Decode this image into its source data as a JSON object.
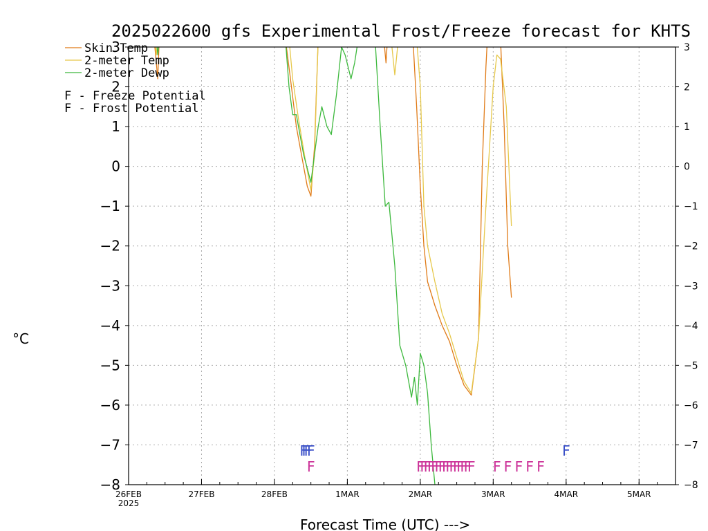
{
  "chart_data": {
    "type": "line",
    "title": "2025022600 gfs Experimental Frost/Freeze forecast for KHTS",
    "xlabel": "Forecast Time (UTC) --->",
    "ylabel": "°C",
    "ylim": [
      -8,
      3
    ],
    "yticks": [
      -8,
      -7,
      -6,
      -5,
      -4,
      -3,
      -2,
      -1,
      0,
      1,
      2,
      3
    ],
    "x_unit": "days since 26FEB2025 00UTC",
    "xlim": [
      0,
      7.5
    ],
    "x_ticks": [
      {
        "x": 0,
        "label": "26FEB",
        "sub": "2025"
      },
      {
        "x": 1,
        "label": "27FEB",
        "sub": ""
      },
      {
        "x": 2,
        "label": "28FEB",
        "sub": ""
      },
      {
        "x": 3,
        "label": "1MAR",
        "sub": ""
      },
      {
        "x": 4,
        "label": "2MAR",
        "sub": ""
      },
      {
        "x": 5,
        "label": "3MAR",
        "sub": ""
      },
      {
        "x": 6,
        "label": "4MAR",
        "sub": ""
      },
      {
        "x": 7,
        "label": "5MAR",
        "sub": ""
      }
    ],
    "grid": true,
    "legend_position": "top-left",
    "series": [
      {
        "name": "Skin Temp",
        "color": "#e07b18",
        "points": [
          [
            0.35,
            3.2
          ],
          [
            0.38,
            2.6
          ],
          [
            0.4,
            2.2
          ],
          [
            0.42,
            3.2
          ],
          [
            2.15,
            3.2
          ],
          [
            2.22,
            2.2
          ],
          [
            2.3,
            1.0
          ],
          [
            2.38,
            0.2
          ],
          [
            2.45,
            -0.5
          ],
          [
            2.5,
            -0.75
          ],
          [
            2.55,
            0.5
          ],
          [
            2.6,
            3.2
          ],
          [
            3.5,
            3.2
          ],
          [
            3.53,
            2.6
          ],
          [
            3.55,
            3.2
          ],
          [
            3.9,
            3.2
          ],
          [
            3.95,
            1.5
          ],
          [
            4.0,
            -0.5
          ],
          [
            4.05,
            -2.0
          ],
          [
            4.1,
            -2.9
          ],
          [
            4.2,
            -3.5
          ],
          [
            4.3,
            -4.0
          ],
          [
            4.4,
            -4.4
          ],
          [
            4.5,
            -5.0
          ],
          [
            4.6,
            -5.5
          ],
          [
            4.7,
            -5.75
          ],
          [
            4.8,
            -4.3
          ],
          [
            4.85,
            0.0
          ],
          [
            4.9,
            2.5
          ],
          [
            4.92,
            3.2
          ],
          [
            5.1,
            3.2
          ],
          [
            5.15,
            1.0
          ],
          [
            5.2,
            -2.0
          ],
          [
            5.25,
            -3.3
          ]
        ]
      },
      {
        "name": "2-meter Temp",
        "color": "#e6c84a",
        "points": [
          [
            0.36,
            3.2
          ],
          [
            0.38,
            2.8
          ],
          [
            0.4,
            3.2
          ],
          [
            2.2,
            3.2
          ],
          [
            2.25,
            2.2
          ],
          [
            2.33,
            1.2
          ],
          [
            2.42,
            0.2
          ],
          [
            2.5,
            -0.6
          ],
          [
            2.55,
            0.3
          ],
          [
            2.6,
            3.2
          ],
          [
            3.6,
            3.2
          ],
          [
            3.65,
            2.3
          ],
          [
            3.7,
            3.2
          ],
          [
            3.95,
            3.2
          ],
          [
            4.0,
            2.0
          ],
          [
            4.05,
            -1.0
          ],
          [
            4.1,
            -2.0
          ],
          [
            4.2,
            -2.9
          ],
          [
            4.3,
            -3.7
          ],
          [
            4.4,
            -4.2
          ],
          [
            4.5,
            -4.8
          ],
          [
            4.6,
            -5.4
          ],
          [
            4.7,
            -5.7
          ],
          [
            4.8,
            -4.3
          ],
          [
            4.9,
            -1.0
          ],
          [
            4.95,
            0.5
          ],
          [
            5.0,
            2.0
          ],
          [
            5.05,
            2.8
          ],
          [
            5.1,
            2.7
          ],
          [
            5.18,
            1.5
          ],
          [
            5.25,
            -1.5
          ]
        ]
      },
      {
        "name": "2-meter Dewp",
        "color": "#3cb83c",
        "points": [
          [
            0.38,
            3.2
          ],
          [
            0.4,
            2.8
          ],
          [
            0.42,
            3.2
          ],
          [
            2.15,
            3.2
          ],
          [
            2.2,
            2.0
          ],
          [
            2.25,
            1.3
          ],
          [
            2.3,
            1.3
          ],
          [
            2.35,
            0.8
          ],
          [
            2.4,
            0.3
          ],
          [
            2.5,
            -0.4
          ],
          [
            2.55,
            0.3
          ],
          [
            2.6,
            1.0
          ],
          [
            2.65,
            1.5
          ],
          [
            2.72,
            1.0
          ],
          [
            2.78,
            0.8
          ],
          [
            2.85,
            1.8
          ],
          [
            2.92,
            3.0
          ],
          [
            2.97,
            2.8
          ],
          [
            3.05,
            2.2
          ],
          [
            3.1,
            2.6
          ],
          [
            3.15,
            3.2
          ],
          [
            3.38,
            3.2
          ],
          [
            3.45,
            1.0
          ],
          [
            3.52,
            -1.0
          ],
          [
            3.57,
            -0.9
          ],
          [
            3.65,
            -2.5
          ],
          [
            3.72,
            -4.5
          ],
          [
            3.8,
            -5.0
          ],
          [
            3.88,
            -5.8
          ],
          [
            3.92,
            -5.3
          ],
          [
            3.96,
            -6.0
          ],
          [
            4.0,
            -4.7
          ],
          [
            4.05,
            -5.0
          ],
          [
            4.1,
            -5.7
          ],
          [
            4.15,
            -7.0
          ],
          [
            4.2,
            -8.0
          ]
        ]
      }
    ],
    "markers": {
      "freeze": {
        "label": "F - Freeze Potential",
        "color": "#cc3399",
        "y": -7.55,
        "positions": [
          2.5,
          4.0,
          4.05,
          4.1,
          4.15,
          4.2,
          4.25,
          4.3,
          4.35,
          4.4,
          4.45,
          4.5,
          4.55,
          4.6,
          4.65,
          4.7,
          5.05,
          5.2,
          5.35,
          5.5,
          5.65
        ]
      },
      "frost": {
        "label": "F - Frost Potential",
        "color": "#3a50c8",
        "y": -7.15,
        "positions": [
          2.4,
          2.43,
          2.46,
          2.5,
          6.0
        ]
      }
    }
  }
}
